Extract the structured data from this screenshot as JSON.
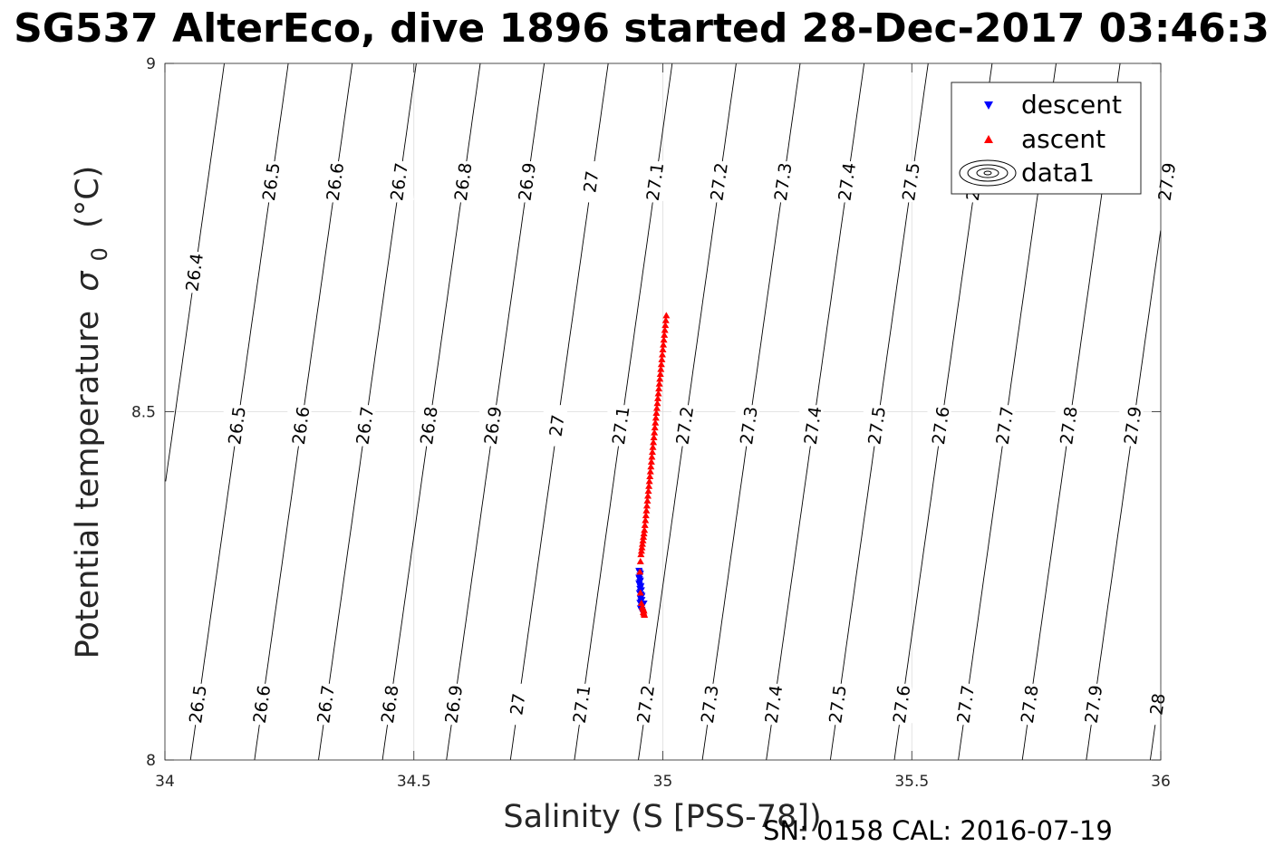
{
  "chart_data": {
    "type": "scatter",
    "title": "SG537 AlterEco, dive 1896 started 28-Dec-2017 03:46:3",
    "xlabel": "Salinity (S [PSS-78])",
    "ylabel": "Potential temperature",
    "ylabel_symbol": "σ",
    "ylabel_subscript": "0",
    "ylabel_unit": "(°C)",
    "xlim": [
      34,
      36
    ],
    "ylim": [
      8,
      9
    ],
    "xticks": [
      "34",
      "34.5",
      "35",
      "35.5",
      "36"
    ],
    "yticks": [
      "8",
      "8.5",
      "9"
    ],
    "grid": true,
    "legend_position": "top-right",
    "legend": [
      {
        "label": "descent",
        "marker": "triangle-down",
        "color": "#0000ff"
      },
      {
        "label": "ascent",
        "marker": "triangle-up",
        "color": "#ff0000"
      },
      {
        "label": "data1",
        "marker": "contour-ellipses",
        "color": "#000000"
      }
    ],
    "contour_levels": [
      26.4,
      26.5,
      26.6,
      26.7,
      26.8,
      26.9,
      27,
      27.1,
      27.2,
      27.3,
      27.4,
      27.5,
      27.6,
      27.7,
      27.8,
      27.9,
      28
    ],
    "contour_labels_top": [
      "26.4",
      "26.5",
      "26.6",
      "26.7",
      "26.8",
      "26.9",
      "27",
      "27.1",
      "27.2",
      "27.3",
      "27.4",
      "27.5",
      "27.6",
      "27.9"
    ],
    "contour_labels_mid": [
      "26.5",
      "26.6",
      "26.7",
      "26.8",
      "26.9",
      "27",
      "27.1",
      "27.2",
      "27.3",
      "27.4",
      "27.5",
      "27.6",
      "27.7",
      "27.8",
      "27.9"
    ],
    "contour_labels_bottom": [
      "26.5",
      "26.6",
      "26.7",
      "26.8",
      "26.9",
      "27",
      "27.1",
      "27.2",
      "27.3",
      "27.4",
      "27.5",
      "27.6",
      "27.7",
      "27.8",
      "27.9",
      "28"
    ],
    "series": [
      {
        "name": "descent",
        "color": "#0000ff",
        "marker": "triangle-down",
        "x": [
          34.952,
          34.953,
          34.955,
          34.954,
          34.952,
          34.953,
          34.955,
          34.954,
          34.952,
          34.953,
          34.956,
          34.955,
          34.954,
          34.957,
          34.955,
          34.953,
          34.956,
          34.958,
          34.957,
          34.955,
          34.958,
          34.956,
          34.954,
          34.957,
          34.959,
          34.957,
          34.955,
          34.958,
          34.962,
          34.957
        ],
        "y": [
          8.272,
          8.27,
          8.268,
          8.265,
          8.262,
          8.26,
          8.258,
          8.256,
          8.254,
          8.252,
          8.25,
          8.248,
          8.246,
          8.244,
          8.242,
          8.24,
          8.238,
          8.236,
          8.234,
          8.232,
          8.23,
          8.228,
          8.226,
          8.224,
          8.222,
          8.22,
          8.218,
          8.216,
          8.225,
          8.215
        ]
      },
      {
        "name": "ascent",
        "color": "#ff0000",
        "marker": "triangle-up",
        "x": [
          34.963,
          34.962,
          34.961,
          34.962,
          34.961,
          34.96,
          34.959,
          34.957,
          34.955,
          34.954,
          34.955,
          34.956,
          34.957,
          34.958,
          34.959,
          34.96,
          34.961,
          34.962,
          34.963,
          34.964,
          34.965,
          34.966,
          34.967,
          34.968,
          34.969,
          34.97,
          34.971,
          34.972,
          34.973,
          34.974,
          34.975,
          34.976,
          34.977,
          34.978,
          34.979,
          34.98,
          34.981,
          34.982,
          34.983,
          34.984,
          34.985,
          34.986,
          34.987,
          34.988,
          34.989,
          34.99,
          34.991,
          34.992,
          34.993,
          34.994,
          34.995,
          34.996,
          34.997,
          34.998,
          34.999,
          35,
          35.001,
          35.002,
          35.003,
          35.004,
          35.005,
          35.006,
          35.007
        ],
        "y": [
          8.208,
          8.21,
          8.212,
          8.214,
          8.216,
          8.218,
          8.22,
          8.225,
          8.24,
          8.27,
          8.285,
          8.295,
          8.3,
          8.305,
          8.31,
          8.315,
          8.32,
          8.325,
          8.33,
          8.337,
          8.344,
          8.351,
          8.358,
          8.365,
          8.372,
          8.379,
          8.386,
          8.393,
          8.4,
          8.407,
          8.414,
          8.421,
          8.428,
          8.435,
          8.442,
          8.449,
          8.456,
          8.463,
          8.47,
          8.477,
          8.484,
          8.491,
          8.498,
          8.505,
          8.512,
          8.519,
          8.526,
          8.533,
          8.54,
          8.547,
          8.554,
          8.561,
          8.568,
          8.575,
          8.582,
          8.589,
          8.596,
          8.603,
          8.61,
          8.617,
          8.624,
          8.631,
          8.638
        ]
      }
    ]
  },
  "footer": {
    "serial": "SN: 0158  CAL: 2016-07-19"
  }
}
